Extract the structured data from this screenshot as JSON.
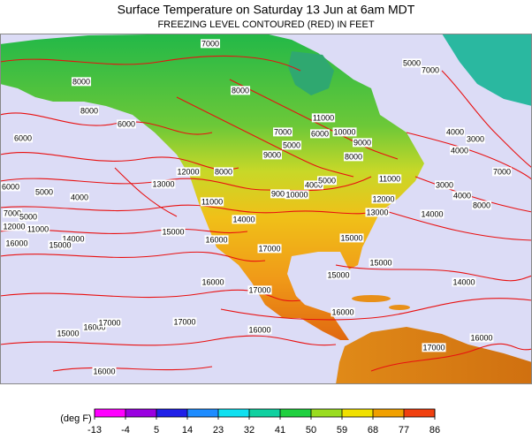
{
  "header": {
    "title": "Surface Temperature on Saturday 13 Jun at 6am MDT",
    "subtitle": "FREEZING LEVEL CONTOURED (RED) IN FEET"
  },
  "contour_labels": [
    8000,
    8000,
    6000,
    8000,
    11000,
    7000,
    6000,
    10000,
    9000,
    8000,
    9000,
    5000,
    8000,
    12000,
    13000,
    4000,
    5000,
    6000,
    7000,
    5000,
    12000,
    11000,
    14000,
    16000,
    15000,
    11000,
    14000,
    9000,
    10000,
    4000,
    5000,
    15000,
    16000,
    17000,
    15000,
    13000,
    11000,
    12000,
    14000,
    3000,
    4000,
    8000,
    4000,
    3000,
    4000,
    7000,
    15000,
    15000,
    16000,
    17000,
    14000,
    16000,
    16000,
    17000,
    15000,
    16000,
    17000,
    17000,
    16000,
    16000,
    6000,
    7000,
    5000,
    7000
  ],
  "colorbar": {
    "unit": "(deg F)",
    "ticks": [
      -13,
      -4,
      5,
      14,
      23,
      32,
      41,
      50,
      59,
      68,
      77,
      86
    ],
    "colors": [
      "#ff00ff",
      "#9a00e0",
      "#2020e8",
      "#1e8cff",
      "#10e0f0",
      "#10d0a0",
      "#20d040",
      "#9adc20",
      "#f0e000",
      "#f0a000",
      "#f04010"
    ]
  }
}
